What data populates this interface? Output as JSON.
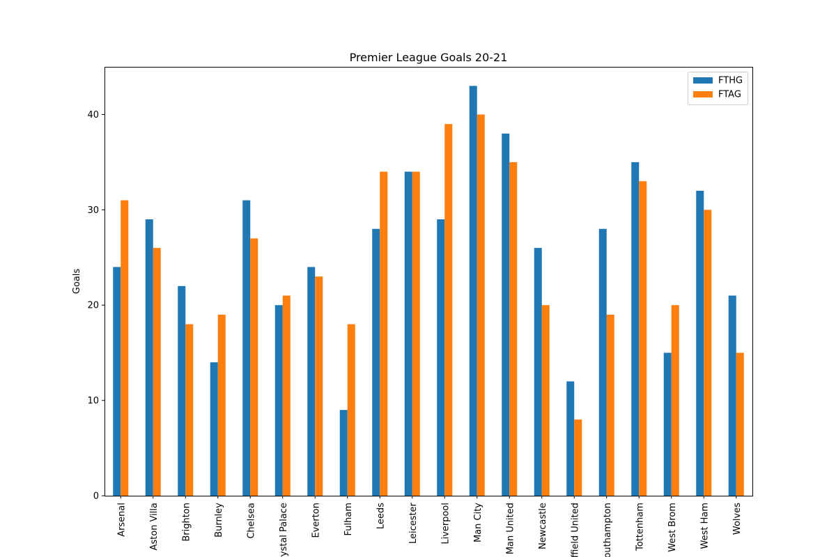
{
  "chart_data": {
    "type": "bar",
    "title": "Premier League Goals 20-21",
    "xlabel": "",
    "ylabel": "Goals",
    "ylim": [
      0,
      45
    ],
    "yticks": [
      0,
      10,
      20,
      30,
      40
    ],
    "grid": false,
    "legend_position": "top-right",
    "categories": [
      "Arsenal",
      "Aston Villa",
      "Brighton",
      "Burnley",
      "Chelsea",
      "Crystal Palace",
      "Everton",
      "Fulham",
      "Leeds",
      "Leicester",
      "Liverpool",
      "Man City",
      "Man United",
      "Newcastle",
      "Sheffield United",
      "Southampton",
      "Tottenham",
      "West Brom",
      "West Ham",
      "Wolves"
    ],
    "series": [
      {
        "name": "FTHG",
        "color": "#1f77b4",
        "values": [
          24,
          29,
          22,
          14,
          31,
          20,
          24,
          9,
          28,
          34,
          29,
          43,
          38,
          26,
          12,
          28,
          35,
          15,
          32,
          21
        ]
      },
      {
        "name": "FTAG",
        "color": "#ff7f0e",
        "values": [
          31,
          26,
          18,
          19,
          27,
          21,
          23,
          18,
          34,
          34,
          39,
          40,
          35,
          20,
          8,
          19,
          33,
          20,
          30,
          15
        ]
      }
    ]
  }
}
